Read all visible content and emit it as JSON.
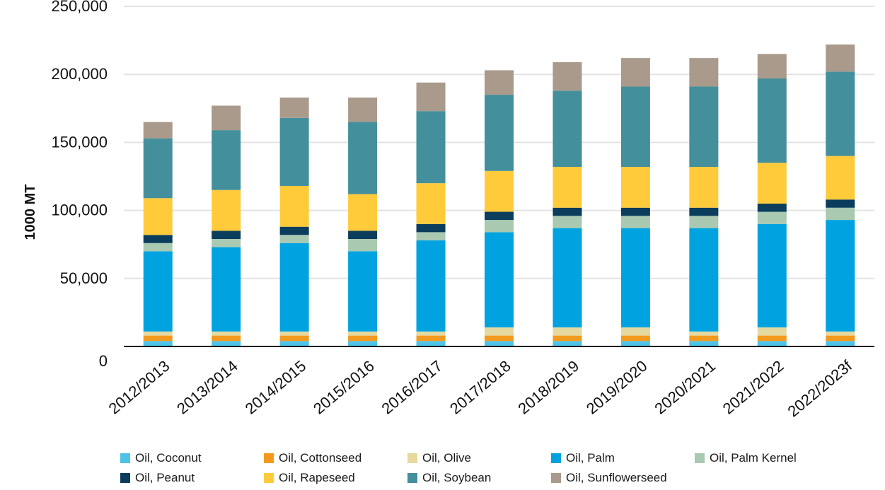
{
  "chart_data": {
    "type": "bar",
    "stacked": true,
    "title": "",
    "xlabel": "",
    "ylabel": "1000 MT",
    "ylim": [
      0,
      250000
    ],
    "yticks": [
      0,
      50000,
      100000,
      150000,
      200000,
      250000
    ],
    "ytick_labels": [
      "0",
      "50,000",
      "100,000",
      "150,000",
      "200,000",
      "250,000"
    ],
    "grid": true,
    "legend_position": "bottom",
    "categories": [
      "2012/2013",
      "2013/2014",
      "2014/2015",
      "2015/2016",
      "2016/2017",
      "2017/2018",
      "2018/2019",
      "2019/2020",
      "2020/2021",
      "2021/2022",
      "2022/2023f"
    ],
    "series": [
      {
        "name": "Oil, Coconut",
        "color": "#4dc3e8",
        "values": [
          4000,
          4000,
          4000,
          4000,
          4000,
          4000,
          4000,
          4000,
          4000,
          4000,
          4000
        ]
      },
      {
        "name": "Oil, Cottonseed",
        "color": "#f39a1e",
        "values": [
          4000,
          4000,
          4000,
          4000,
          4000,
          4000,
          4000,
          4000,
          4000,
          4000,
          4000
        ]
      },
      {
        "name": "Oil, Olive",
        "color": "#e5d9a0",
        "values": [
          3000,
          3000,
          3000,
          3000,
          3000,
          6000,
          6000,
          6000,
          3000,
          6000,
          3000
        ]
      },
      {
        "name": "Oil, Palm",
        "color": "#00a3e0",
        "values": [
          59000,
          62000,
          65000,
          59000,
          67000,
          70000,
          73000,
          73000,
          76000,
          76000,
          82000
        ]
      },
      {
        "name": "Oil, Palm Kernel",
        "color": "#a9c9b1",
        "values": [
          6000,
          6000,
          6000,
          9000,
          6000,
          9000,
          9000,
          9000,
          9000,
          9000,
          9000
        ]
      },
      {
        "name": "Oil, Peanut",
        "color": "#0b3d5c",
        "values": [
          6000,
          6000,
          6000,
          6000,
          6000,
          6000,
          6000,
          6000,
          6000,
          6000,
          6000
        ]
      },
      {
        "name": "Oil, Rapeseed",
        "color": "#ffcb3b",
        "values": [
          27000,
          30000,
          30000,
          27000,
          30000,
          30000,
          30000,
          30000,
          30000,
          30000,
          32000
        ]
      },
      {
        "name": "Oil, Soybean",
        "color": "#448f9c",
        "values": [
          44000,
          44000,
          50000,
          53000,
          53000,
          56000,
          56000,
          59000,
          59000,
          62000,
          62000
        ]
      },
      {
        "name": "Oil, Sunflowerseed",
        "color": "#a99a8c",
        "values": [
          12000,
          18000,
          15000,
          18000,
          21000,
          18000,
          21000,
          21000,
          21000,
          18000,
          20000
        ]
      }
    ]
  }
}
